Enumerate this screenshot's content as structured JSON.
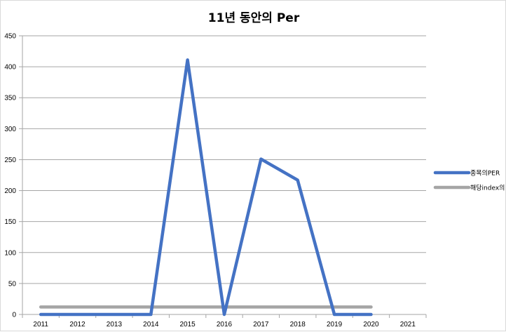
{
  "chart_data": {
    "type": "line",
    "title": "11년 동안의 Per",
    "categories": [
      "2011",
      "2012",
      "2013",
      "2014",
      "2015",
      "2016",
      "2017",
      "2018",
      "2019",
      "2020",
      "2021"
    ],
    "series": [
      {
        "name": "종목의PER",
        "color": "#4472c4",
        "values": [
          0,
          0,
          0,
          0,
          411,
          0,
          251,
          217,
          0,
          0,
          null
        ]
      },
      {
        "name": "해당index의 PER",
        "color": "#a5a5a5",
        "values": [
          12,
          12,
          12,
          12,
          12,
          12,
          12,
          12,
          12,
          12,
          null
        ]
      }
    ],
    "ylim": [
      0,
      450
    ],
    "yticks": [
      "0",
      "50",
      "100",
      "150",
      "200",
      "250",
      "300",
      "350",
      "400",
      "450"
    ],
    "grid": true,
    "legend": "right"
  }
}
